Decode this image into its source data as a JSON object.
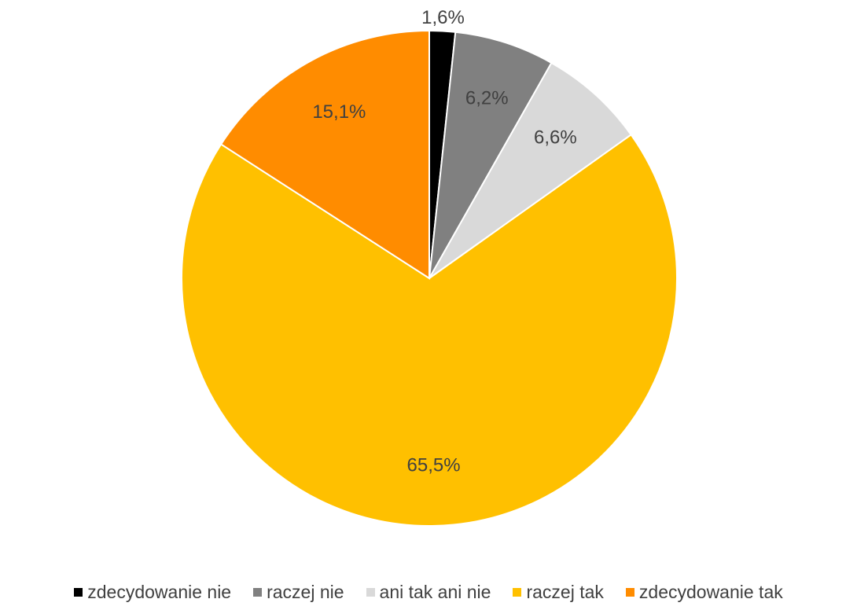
{
  "chart_data": {
    "type": "pie",
    "title": "",
    "categories": [
      "zdecydowanie nie",
      "raczej nie",
      "ani tak ani nie",
      "raczej tak",
      "zdecydowanie tak"
    ],
    "values": [
      1.6,
      6.2,
      6.6,
      65.5,
      15.1
    ],
    "labels": [
      "1,6%",
      "6,2%",
      "6,6%",
      "65,5%",
      "15,1%"
    ],
    "colors": [
      "#000000",
      "#808080",
      "#d9d9d9",
      "#ffc000",
      "#ff8c00"
    ],
    "start_angle": "12 o'clock",
    "direction": "clockwise",
    "legend_position": "bottom"
  }
}
